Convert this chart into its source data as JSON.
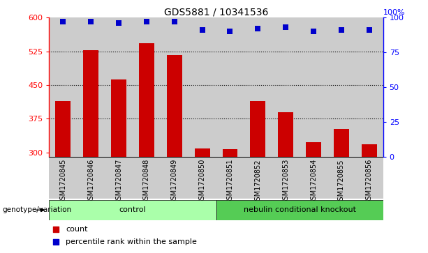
{
  "title": "GDS5881 / 10341536",
  "samples": [
    "GSM1720845",
    "GSM1720846",
    "GSM1720847",
    "GSM1720848",
    "GSM1720849",
    "GSM1720850",
    "GSM1720851",
    "GSM1720852",
    "GSM1720853",
    "GSM1720854",
    "GSM1720855",
    "GSM1720856"
  ],
  "counts": [
    415,
    528,
    462,
    543,
    517,
    308,
    307,
    415,
    390,
    323,
    352,
    318
  ],
  "percentiles": [
    97,
    97,
    96,
    97,
    97,
    91,
    90,
    92,
    93,
    90,
    91,
    91
  ],
  "bar_color": "#cc0000",
  "dot_color": "#0000cc",
  "ylim_left": [
    290,
    600
  ],
  "ylim_right": [
    0,
    100
  ],
  "yticks_left": [
    300,
    375,
    450,
    525,
    600
  ],
  "yticks_right": [
    0,
    25,
    50,
    75,
    100
  ],
  "grid_values": [
    375,
    450,
    525
  ],
  "groups": [
    {
      "label": "control",
      "start": 0,
      "end": 5,
      "color": "#aaffaa"
    },
    {
      "label": "nebulin conditional knockout",
      "start": 6,
      "end": 11,
      "color": "#55cc55"
    }
  ],
  "group_label": "genotype/variation",
  "legend_items": [
    {
      "label": "count",
      "color": "#cc0000"
    },
    {
      "label": "percentile rank within the sample",
      "color": "#0000cc"
    }
  ],
  "bg_color_bars": "#cccccc",
  "bar_width": 0.55,
  "dot_size": 35,
  "pct_label": "100%"
}
